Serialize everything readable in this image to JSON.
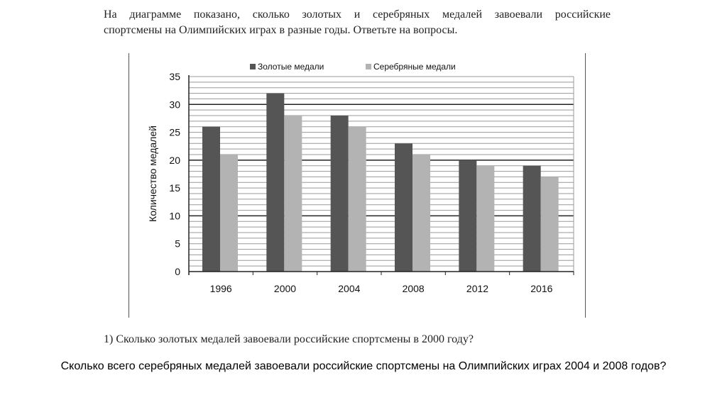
{
  "intro": {
    "line1": "На диаграмме показано, сколько золотых и серебряных медалей завоевали российские",
    "line2": "спортсмены на Олимпийских играх в разные годы. Ответьте на вопросы."
  },
  "question1": "1) Сколько золотых медалей завоевали российские спортсмены в 2000 году?",
  "question2": "Сколько всего серебряных медалей завоевали российские спортсмены на Олимпийских играх 2004 и 2008 годов?",
  "chart_data": {
    "type": "bar",
    "categories": [
      "1996",
      "2000",
      "2004",
      "2008",
      "2012",
      "2016"
    ],
    "series": [
      {
        "name": "Золотые медали",
        "values": [
          26,
          32,
          28,
          23,
          20,
          19
        ],
        "color": "#555555"
      },
      {
        "name": "Серебряные медали",
        "values": [
          21,
          28,
          26,
          21,
          19,
          17
        ],
        "color": "#b3b3b3"
      }
    ],
    "title": "",
    "xlabel": "",
    "ylabel": "Количество медалей",
    "ylim": [
      0,
      35
    ],
    "yticks": [
      "0",
      "5",
      "10",
      "15",
      "20",
      "25",
      "30",
      "35"
    ],
    "grid": true,
    "legend": "top"
  }
}
